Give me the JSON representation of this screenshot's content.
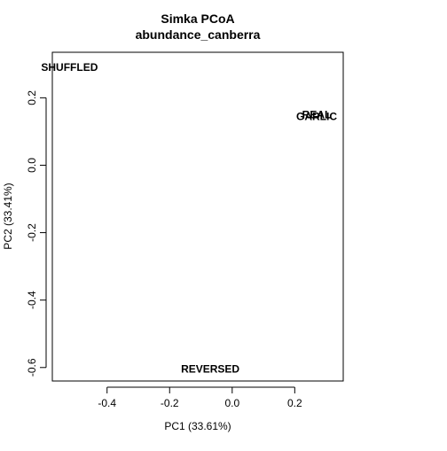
{
  "chart_data": {
    "type": "scatter",
    "title": "Simka PCoA",
    "subtitle": "abundance_canberra",
    "xlabel": "PC1 (33.61%)",
    "ylabel": "PC2 (33.41%)",
    "xlim": [
      -0.575,
      0.355
    ],
    "ylim": [
      -0.64,
      0.335
    ],
    "xticks": [
      -0.4,
      -0.2,
      0.0,
      0.2
    ],
    "xtick_labels": [
      "-0.4",
      "-0.2",
      "0.0",
      "0.2"
    ],
    "yticks": [
      -0.6,
      -0.4,
      -0.2,
      0.0,
      0.2
    ],
    "ytick_labels": [
      "-0.6",
      "-0.4",
      "-0.2",
      "0.0",
      "0.2"
    ],
    "grid": false,
    "points": [
      {
        "label": "SHUFFLED",
        "x": -0.52,
        "y": 0.29
      },
      {
        "label": "REAL",
        "x": 0.27,
        "y": 0.15
      },
      {
        "label": "GARLIC",
        "x": 0.27,
        "y": 0.145
      },
      {
        "label": "REVERSED",
        "x": -0.07,
        "y": -0.605
      }
    ]
  }
}
